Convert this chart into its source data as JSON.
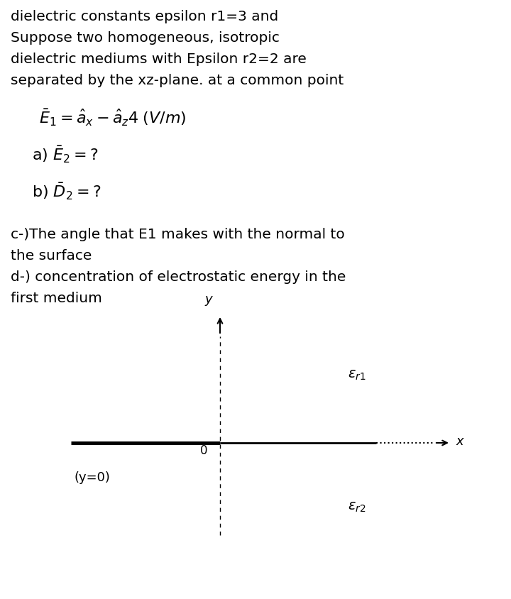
{
  "title_text": "dielectric constants epsilon r1=3 and\nSuppose two homogeneous, isotropic\ndielectric mediums with Epsilon r2=2 are\nseparated by the xz-plane. at a common point",
  "part_cd": "c-)The angle that E1 makes with the normal to\nthe surface\nd-) concentration of electrostatic energy in the\nfirst medium",
  "bg_color": "#ffffff",
  "text_color": "#000000",
  "text_fontsize": 14.5,
  "eq_fontsize": 16,
  "diag_fontsize": 13
}
